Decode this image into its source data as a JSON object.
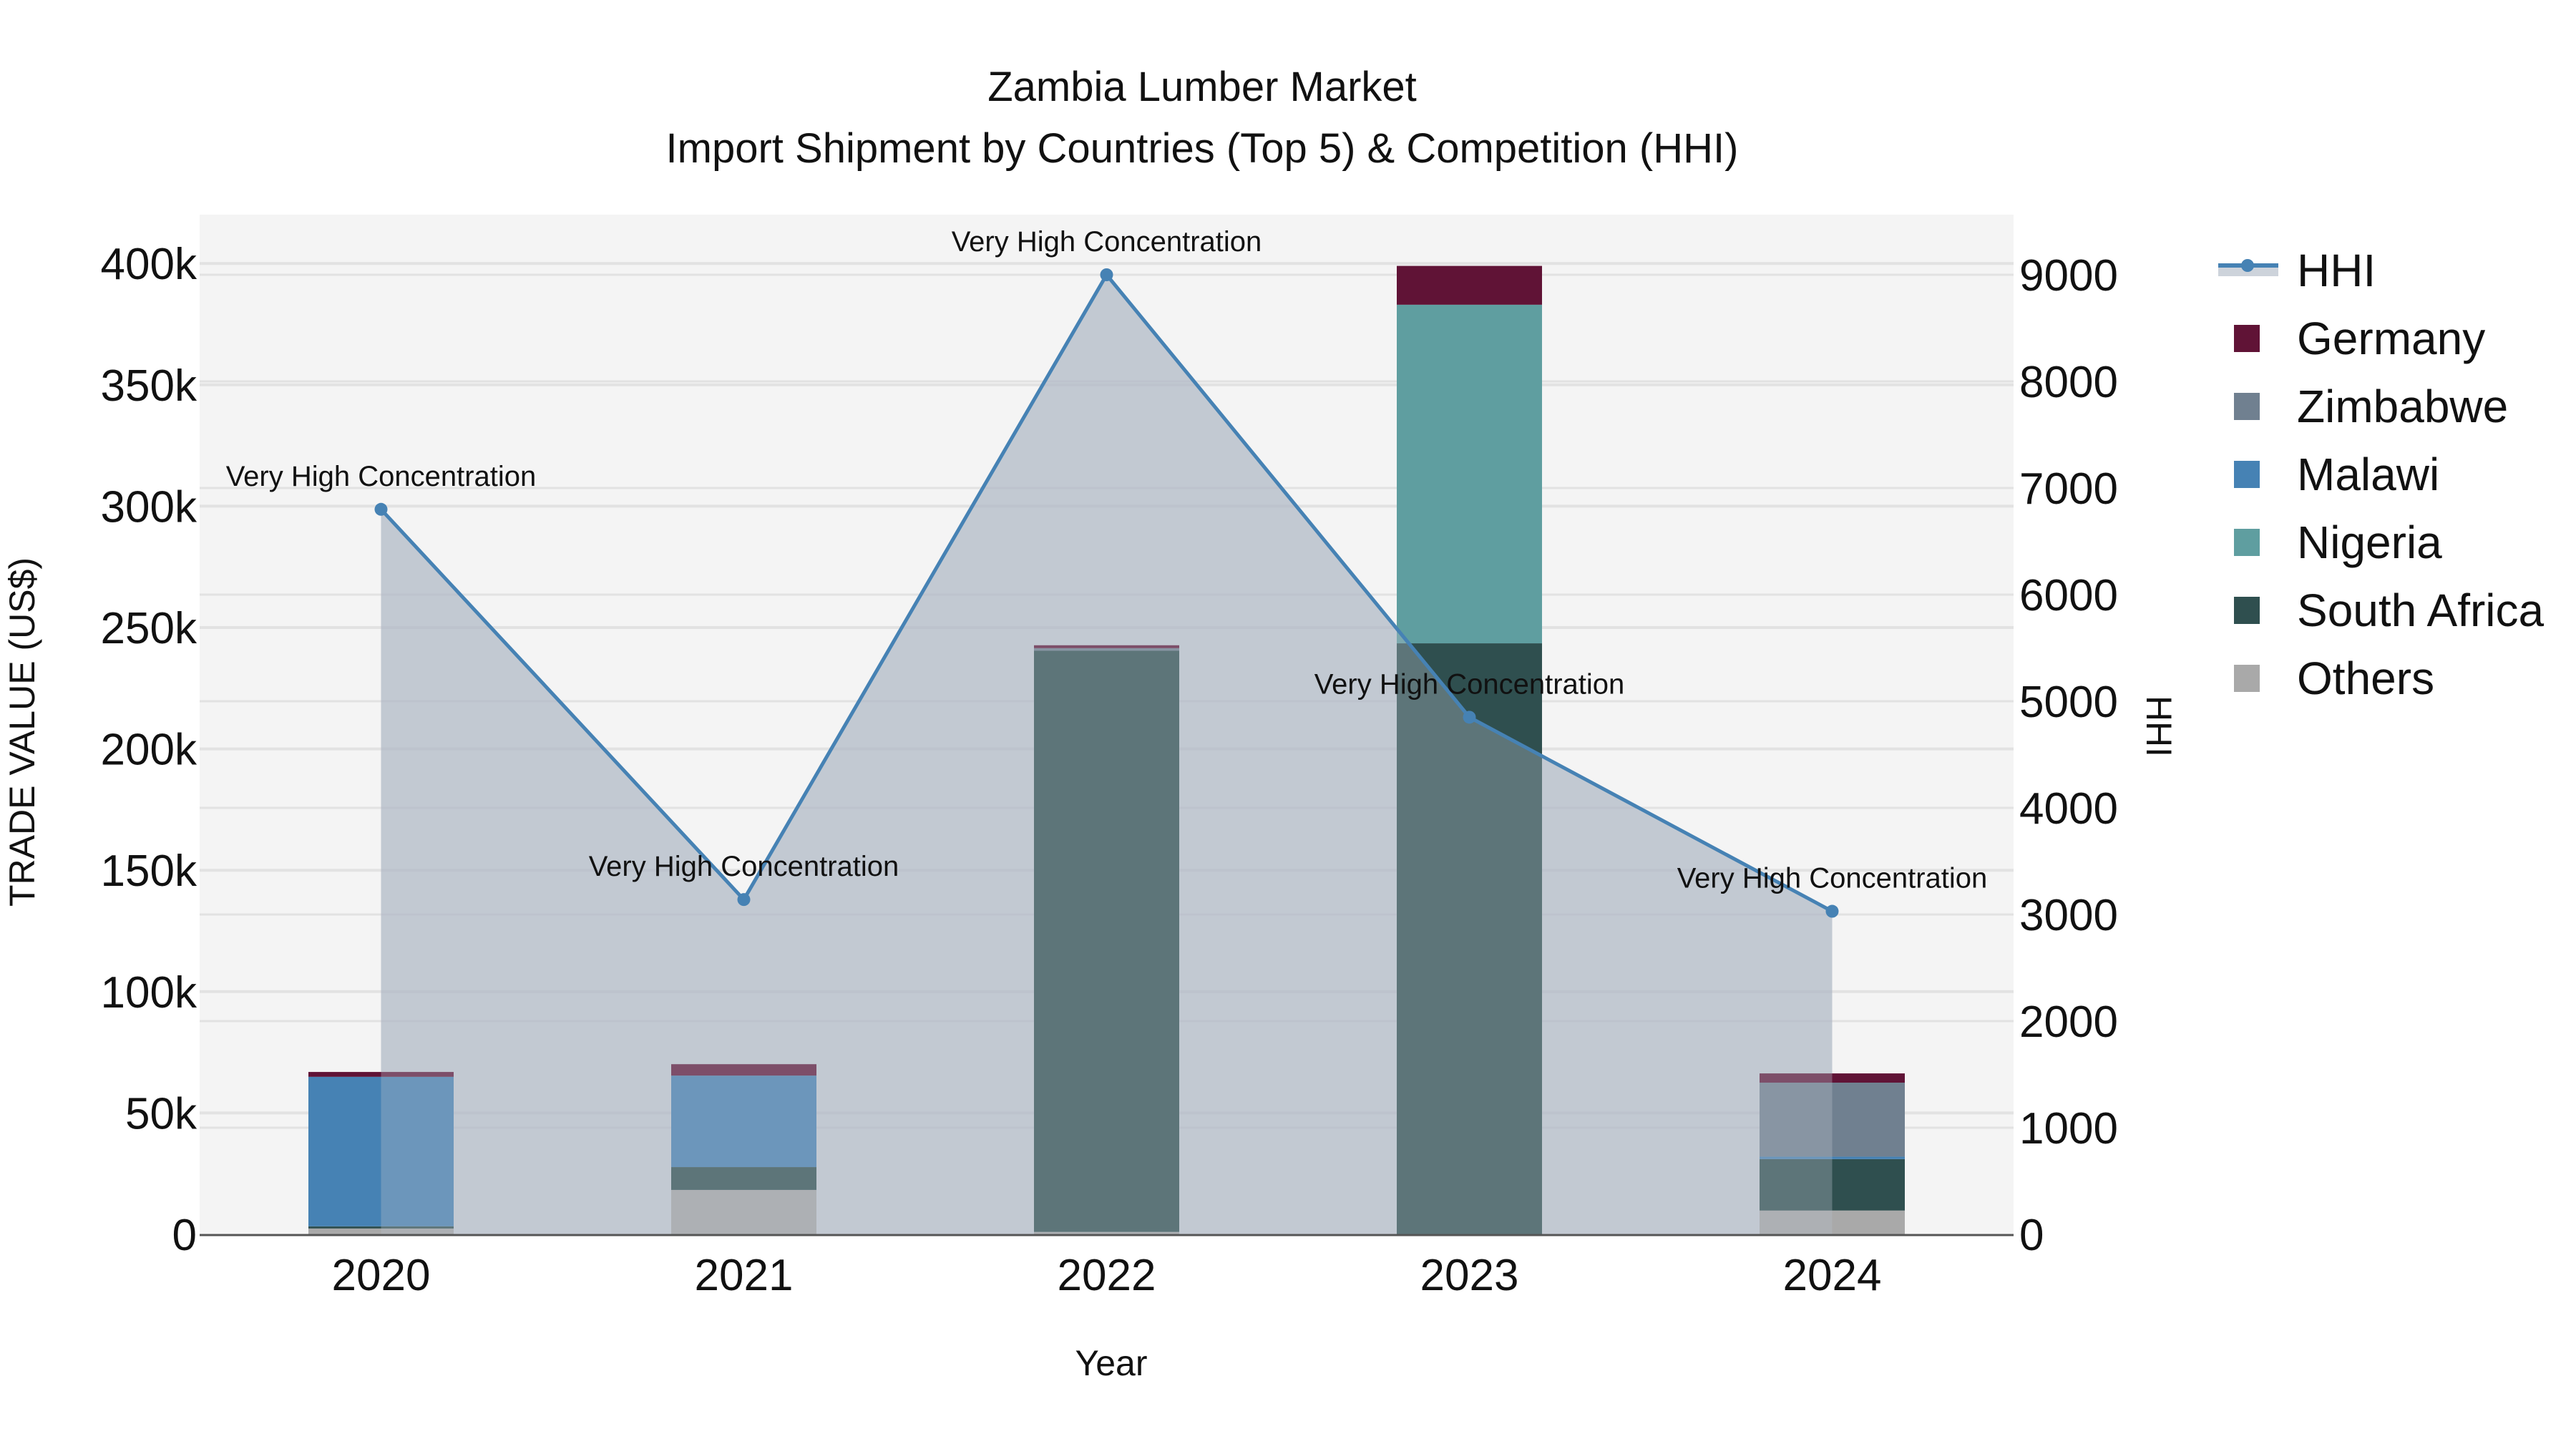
{
  "chart_data": {
    "type": "bar",
    "subtype": "stacked bar + line (dual axis)",
    "title": "Zambia Lumber Market",
    "subtitle": "Import Shipment by Countries (Top 5) & Competition (HHI)",
    "xlabel": "Year",
    "ylabel": "TRADE VALUE (US$)",
    "y2label": "HHI",
    "categories": [
      "2020",
      "2021",
      "2022",
      "2023",
      "2024"
    ],
    "ylim": [
      0,
      420000
    ],
    "y_ticks": [
      0,
      50000,
      100000,
      150000,
      200000,
      250000,
      300000,
      350000,
      400000
    ],
    "y_tick_labels": [
      "0",
      "50k",
      "100k",
      "150k",
      "200k",
      "250k",
      "300k",
      "350k",
      "400k"
    ],
    "y2lim": [
      0,
      9500
    ],
    "y2_ticks": [
      0,
      1000,
      2000,
      3000,
      4000,
      5000,
      6000,
      7000,
      8000,
      9000
    ],
    "y2_tick_labels": [
      "0",
      "1000",
      "2000",
      "3000",
      "4000",
      "5000",
      "6000",
      "7000",
      "8000",
      "9000"
    ],
    "grid": true,
    "legend_position": "right",
    "series": [
      {
        "name": "Others",
        "color": "#A9A9A9",
        "values": [
          2400,
          18300,
          1000,
          0,
          9800
        ]
      },
      {
        "name": "South Africa",
        "color": "#2F4F4F",
        "values": [
          900,
          9400,
          239500,
          243500,
          21200
        ]
      },
      {
        "name": "Nigeria",
        "color": "#5F9EA0",
        "values": [
          0,
          0,
          0,
          139500,
          0
        ]
      },
      {
        "name": "Malawi",
        "color": "#4682B4",
        "values": [
          61600,
          37700,
          0,
          0,
          1000
        ]
      },
      {
        "name": "Zimbabwe",
        "color": "#708090",
        "values": [
          0,
          0,
          1000,
          0,
          30500
        ]
      },
      {
        "name": "Germany",
        "color": "#601336",
        "values": [
          2000,
          4700,
          1200,
          16000,
          3800
        ]
      }
    ],
    "line_series": {
      "name": "HHI",
      "axis": "y2",
      "color": "#4682B4",
      "fill_color": "rgba(173,181,196,0.6)",
      "values": [
        6800,
        3140,
        9000,
        4850,
        3030
      ],
      "annotations": [
        "Very High Concentration",
        "Very High Concentration",
        "Very High Concentration",
        "Very High Concentration",
        "Very High Concentration"
      ]
    }
  },
  "legend": {
    "items": [
      {
        "label": "HHI",
        "kind": "line",
        "color": "#4682B4"
      },
      {
        "label": "Germany",
        "kind": "bar",
        "color": "#601336"
      },
      {
        "label": "Zimbabwe",
        "kind": "bar",
        "color": "#708090"
      },
      {
        "label": "Malawi",
        "kind": "bar",
        "color": "#4682B4"
      },
      {
        "label": "Nigeria",
        "kind": "bar",
        "color": "#5F9EA0"
      },
      {
        "label": "South Africa",
        "kind": "bar",
        "color": "#2F4F4F"
      },
      {
        "label": "Others",
        "kind": "bar",
        "color": "#A9A9A9"
      }
    ]
  },
  "colors": {
    "plot_bg": "#F4F4F4",
    "grid": "#E2E2E2",
    "axis_line": "#555555"
  }
}
